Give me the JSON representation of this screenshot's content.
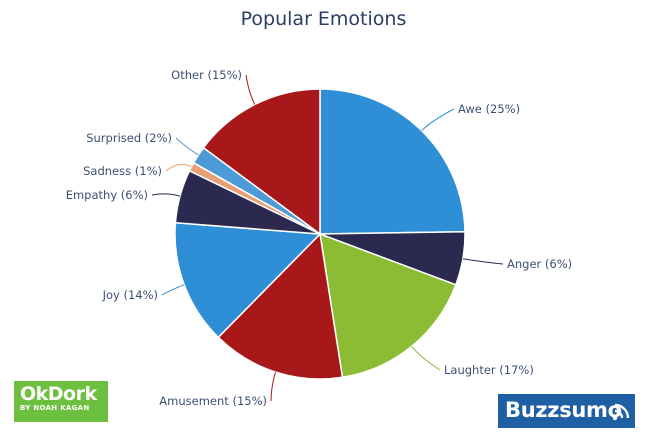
{
  "chart_data": {
    "type": "pie",
    "title": "Popular Emotions",
    "slices": [
      {
        "label": "Awe (25%)",
        "value": 25,
        "color": "#2e8fd6"
      },
      {
        "label": "Anger (6%)",
        "value": 6,
        "color": "#2b2950"
      },
      {
        "label": "Laughter (17%)",
        "value": 17,
        "color": "#8bbc34"
      },
      {
        "label": "Amusement (15%)",
        "value": 15,
        "color": "#a8181a"
      },
      {
        "label": "Joy (14%)",
        "value": 14,
        "color": "#2e8fd6"
      },
      {
        "label": "Empathy (6%)",
        "value": 6,
        "color": "#2b2950"
      },
      {
        "label": "Sadness (1%)",
        "value": 1,
        "color": "#e7a076"
      },
      {
        "label": "Surprised (2%)",
        "value": 2,
        "color": "#4d9bd6"
      },
      {
        "label": "Other (15%)",
        "value": 15,
        "color": "#a8181a"
      }
    ],
    "start": "12 o'clock",
    "direction": "clockwise",
    "legend": "none"
  },
  "logos": {
    "okdork": {
      "name": "OkDork",
      "sub": "BY NOAH KAGAN",
      "color": "#6cbf3f"
    },
    "buzzsumo": {
      "name": "Buzzsumo",
      "color": "#1f5fa3"
    }
  }
}
